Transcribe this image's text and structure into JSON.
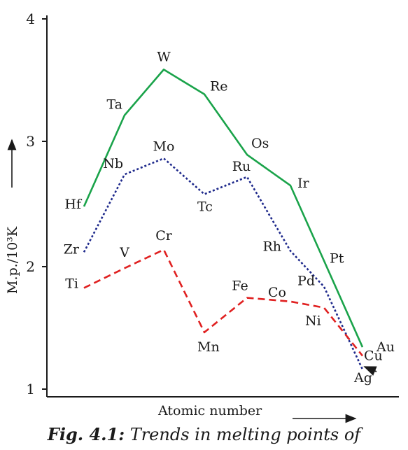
{
  "chart_data": {
    "type": "line",
    "ylabel": "M.p./10³K",
    "xlabel": "Atomic number",
    "ylim": [
      1,
      4
    ],
    "yticks": [
      1,
      2,
      3,
      4
    ],
    "series": [
      {
        "color": "#1aa34a",
        "dash": "solid",
        "points": [
          {
            "label": "Hf",
            "y": 2.48
          },
          {
            "label": "Ta",
            "y": 3.22
          },
          {
            "label": "W",
            "y": 3.59
          },
          {
            "label": "Re",
            "y": 3.39
          },
          {
            "label": "Os",
            "y": 2.9
          },
          {
            "label": "Ir",
            "y": 2.65
          },
          {
            "label": "Pt",
            "y": 2.04
          },
          {
            "label": "Au",
            "y": 1.34
          }
        ]
      },
      {
        "color": "#1f2a8c",
        "dash": "dotted",
        "points": [
          {
            "label": "Zr",
            "y": 2.11
          },
          {
            "label": "Nb",
            "y": 2.74
          },
          {
            "label": "Mo",
            "y": 2.87
          },
          {
            "label": "Tc",
            "y": 2.58
          },
          {
            "label": "Ru",
            "y": 2.72
          },
          {
            "label": "Rh",
            "y": 2.12
          },
          {
            "label": "Pd",
            "y": 1.83
          },
          {
            "label": "Ag",
            "y": 1.16
          }
        ]
      },
      {
        "color": "#e02020",
        "dash": "dashed",
        "points": [
          {
            "label": "Ti",
            "y": 1.82
          },
          {
            "label": "V",
            "y": 1.98
          },
          {
            "label": "Cr",
            "y": 2.13
          },
          {
            "label": "Mn",
            "y": 1.46
          },
          {
            "label": "Fe",
            "y": 1.74
          },
          {
            "label": "Co",
            "y": 1.71
          },
          {
            "label": "Ni",
            "y": 1.66
          },
          {
            "label": "Cu",
            "y": 1.27
          }
        ]
      }
    ]
  },
  "caption": {
    "fig_label": "Fig. 4.1:",
    "text": " Trends in melting points of"
  }
}
